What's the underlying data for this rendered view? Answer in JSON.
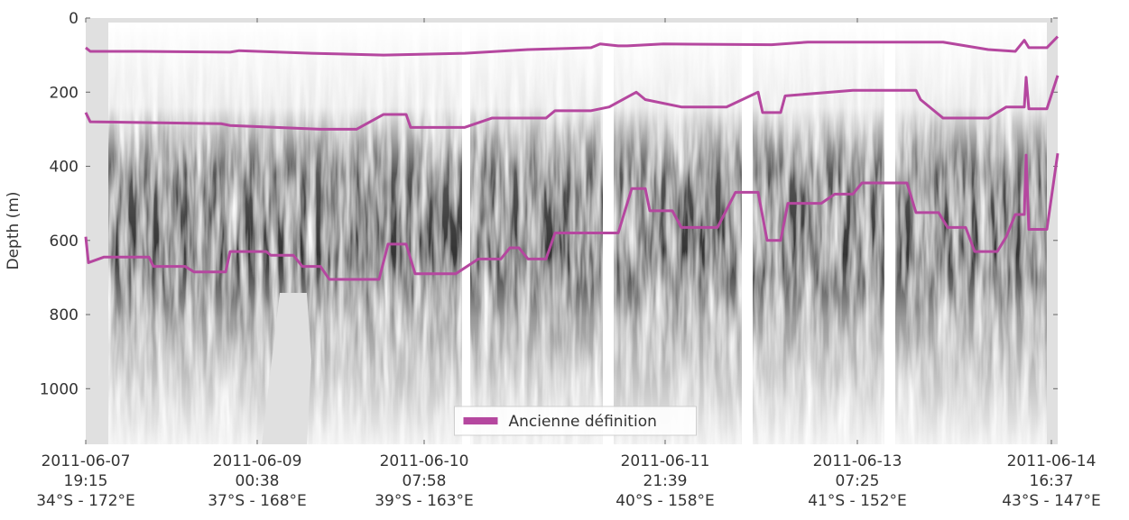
{
  "chart_data": {
    "type": "line",
    "y_label": "Depth (m)",
    "ylim": [
      0,
      1150
    ],
    "y_inverted": true,
    "yticks": [
      0,
      200,
      400,
      600,
      800,
      1000
    ],
    "xlim": [
      0,
      1077
    ],
    "xticks": [
      {
        "value": 0,
        "label": [
          "2011-06-07",
          "19:15",
          "34°S - 172°E"
        ]
      },
      {
        "value": 190,
        "label": [
          "2011-06-09",
          "00:38",
          "37°S - 168°E"
        ]
      },
      {
        "value": 375,
        "label": [
          "2011-06-10",
          "07:58",
          "39°S - 163°E"
        ]
      },
      {
        "value": 642,
        "label": [
          "2011-06-11",
          "21:39",
          "40°S - 158°E"
        ]
      },
      {
        "value": 855,
        "label": [
          "2011-06-13",
          "07:25",
          "41°S - 152°E"
        ]
      },
      {
        "value": 1070,
        "label": [
          "2011-06-14",
          "16:37",
          "43°S - 147°E"
        ]
      }
    ],
    "legend": "lower center",
    "series": [
      {
        "name": "Ancienne définition",
        "color": "#b5479f",
        "x": [
          0,
          5,
          60,
          160,
          170,
          250,
          330,
          420,
          490,
          560,
          570,
          590,
          600,
          640,
          760,
          800,
          950,
          1000,
          1030,
          1040,
          1045,
          1065,
          1077
        ],
        "values": [
          80,
          90,
          90,
          92,
          88,
          95,
          100,
          95,
          85,
          80,
          70,
          75,
          75,
          70,
          72,
          65,
          65,
          85,
          90,
          60,
          80,
          80,
          50
        ]
      },
      {
        "color": "#b5479f",
        "x": [
          0,
          5,
          150,
          160,
          260,
          300,
          330,
          355,
          360,
          420,
          450,
          510,
          520,
          560,
          580,
          610,
          620,
          660,
          710,
          745,
          750,
          770,
          775,
          850,
          920,
          925,
          950,
          1000,
          1020,
          1040,
          1042,
          1045,
          1065,
          1077
        ],
        "values": [
          255,
          280,
          285,
          290,
          300,
          300,
          260,
          260,
          295,
          295,
          270,
          270,
          250,
          250,
          240,
          200,
          220,
          240,
          240,
          200,
          255,
          255,
          210,
          195,
          195,
          220,
          270,
          270,
          240,
          240,
          160,
          245,
          245,
          155
        ]
      },
      {
        "color": "#b5479f",
        "x": [
          0,
          3,
          20,
          70,
          75,
          110,
          120,
          155,
          160,
          200,
          205,
          230,
          240,
          260,
          270,
          325,
          335,
          355,
          365,
          410,
          435,
          460,
          470,
          480,
          490,
          510,
          520,
          590,
          605,
          620,
          625,
          650,
          660,
          700,
          720,
          745,
          755,
          770,
          778,
          815,
          830,
          850,
          860,
          910,
          920,
          945,
          955,
          975,
          985,
          1010,
          1020,
          1030,
          1040,
          1042,
          1045,
          1065,
          1077
        ],
        "values": [
          590,
          660,
          645,
          645,
          670,
          670,
          685,
          685,
          630,
          630,
          640,
          640,
          670,
          670,
          705,
          705,
          610,
          610,
          690,
          690,
          650,
          650,
          620,
          620,
          650,
          650,
          580,
          580,
          460,
          460,
          520,
          520,
          565,
          565,
          470,
          470,
          600,
          600,
          500,
          500,
          475,
          475,
          445,
          445,
          525,
          525,
          565,
          565,
          630,
          630,
          590,
          530,
          530,
          370,
          570,
          570,
          365
        ]
      }
    ]
  }
}
